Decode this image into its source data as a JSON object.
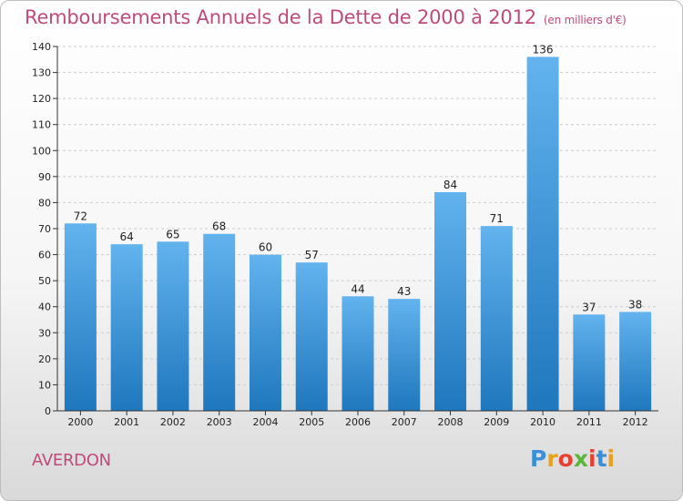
{
  "title": "Remboursements Annuels de la Dette de 2000 à 2012",
  "subtitle": "(en milliers d'€)",
  "place": "AVERDON",
  "logo": {
    "letters": [
      "P",
      "r",
      "o",
      "x",
      "i",
      "t",
      "i"
    ],
    "colors": [
      "#3a8fd6",
      "#e8a020",
      "#e84030",
      "#5ab53a",
      "#e84030",
      "#3a8fd6",
      "#e8a020"
    ]
  },
  "colors": {
    "title": "#c04a7c",
    "bar_top": "#62b3ee",
    "bar_bottom": "#1f77bd",
    "grid": "#cccccc"
  },
  "chart_data": {
    "type": "bar",
    "title": "Remboursements Annuels de la Dette de 2000 à 2012",
    "xlabel": "",
    "ylabel": "",
    "categories": [
      "2000",
      "2001",
      "2002",
      "2003",
      "2004",
      "2005",
      "2006",
      "2007",
      "2008",
      "2009",
      "2010",
      "2011",
      "2012"
    ],
    "values": [
      72,
      64,
      65,
      68,
      60,
      57,
      44,
      43,
      84,
      71,
      136,
      37,
      38
    ],
    "ylim": [
      0,
      140
    ],
    "yticks": [
      0,
      10,
      20,
      30,
      40,
      50,
      60,
      70,
      80,
      90,
      100,
      110,
      120,
      130,
      140
    ],
    "grid": true
  }
}
